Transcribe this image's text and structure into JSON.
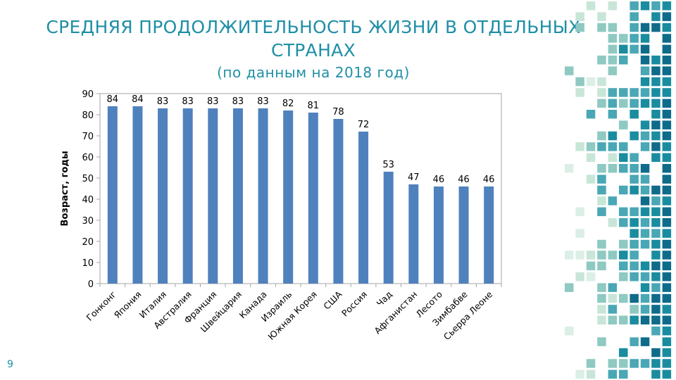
{
  "slide": {
    "title": "СРЕДНЯЯ ПРОДОЛЖИТЕЛЬНОСТЬ ЖИЗНИ В ОТДЕЛЬНЫХ СТРАНАХ",
    "subtitle": "(по данным на 2018 год)",
    "page_number": "9",
    "accent_color": "#1f8fa6"
  },
  "chart_data": {
    "type": "bar",
    "categories": [
      "Гонконг",
      "Япония",
      "Италия",
      "Австралия",
      "Франция",
      "Швейцария",
      "Канада",
      "Израиль",
      "Южная Корея",
      "США",
      "Россия",
      "Чад",
      "Афганистан",
      "Лесото",
      "Зимбабве",
      "Сьерра Леоне"
    ],
    "values": [
      84,
      84,
      83,
      83,
      83,
      83,
      83,
      82,
      81,
      78,
      72,
      53,
      47,
      46,
      46,
      46
    ],
    "data_labels": [
      "84",
      "84",
      "83",
      "83",
      "83",
      "83",
      "83",
      "82",
      "81",
      "78",
      "72",
      "53",
      "47",
      "46",
      "46",
      "46"
    ],
    "ylabel": "Возраст, годы",
    "yticks": [
      "0",
      "10",
      "20",
      "30",
      "40",
      "50",
      "60",
      "70",
      "80",
      "90"
    ],
    "ylim": [
      0,
      90
    ],
    "grid": false,
    "legend": "none",
    "bar_color": "#4f81bd"
  }
}
